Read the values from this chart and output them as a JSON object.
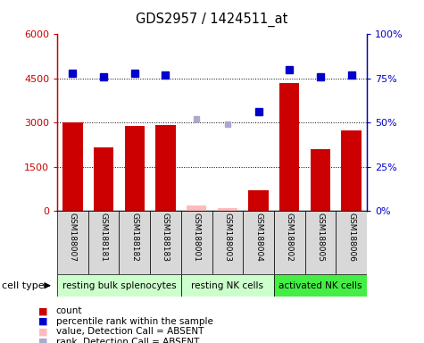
{
  "title": "GDS2957 / 1424511_at",
  "samples": [
    "GSM188007",
    "GSM188181",
    "GSM188182",
    "GSM188183",
    "GSM188001",
    "GSM188003",
    "GSM188004",
    "GSM188002",
    "GSM188005",
    "GSM188006"
  ],
  "bar_values": [
    3000,
    2150,
    2900,
    2930,
    null,
    null,
    700,
    4350,
    2100,
    2750
  ],
  "absent_bar_values": [
    null,
    null,
    null,
    null,
    200,
    100,
    null,
    null,
    null,
    null
  ],
  "percentile_values": [
    78,
    76,
    78,
    77,
    null,
    null,
    56,
    80,
    76,
    77
  ],
  "absent_rank_values": [
    null,
    null,
    null,
    null,
    52,
    49,
    null,
    null,
    null,
    null
  ],
  "left_ylim": [
    0,
    6000
  ],
  "right_ylim": [
    0,
    100
  ],
  "left_yticks": [
    0,
    1500,
    3000,
    4500,
    6000
  ],
  "right_yticks": [
    0,
    25,
    50,
    75,
    100
  ],
  "left_yticklabels": [
    "0",
    "1500",
    "3000",
    "4500",
    "6000"
  ],
  "right_yticklabels": [
    "0%",
    "25%",
    "50%",
    "75%",
    "100%"
  ],
  "left_color": "#cc0000",
  "right_color": "#0000cc",
  "bar_color": "#cc0000",
  "absent_bar_color": "#ffbbbb",
  "dot_color": "#0000cc",
  "absent_dot_color": "#aaaacc",
  "cell_type_groups": [
    {
      "label": "resting bulk splenocytes",
      "start": 0,
      "end": 4,
      "color": "#ccffcc"
    },
    {
      "label": "resting NK cells",
      "start": 4,
      "end": 7,
      "color": "#ccffcc"
    },
    {
      "label": "activated NK cells",
      "start": 7,
      "end": 10,
      "color": "#44ee44"
    }
  ],
  "cell_type_label": "cell type",
  "legend_items": [
    {
      "label": "count",
      "color": "#cc0000"
    },
    {
      "label": "percentile rank within the sample",
      "color": "#0000cc"
    },
    {
      "label": "value, Detection Call = ABSENT",
      "color": "#ffbbbb"
    },
    {
      "label": "rank, Detection Call = ABSENT",
      "color": "#aaaacc"
    }
  ]
}
